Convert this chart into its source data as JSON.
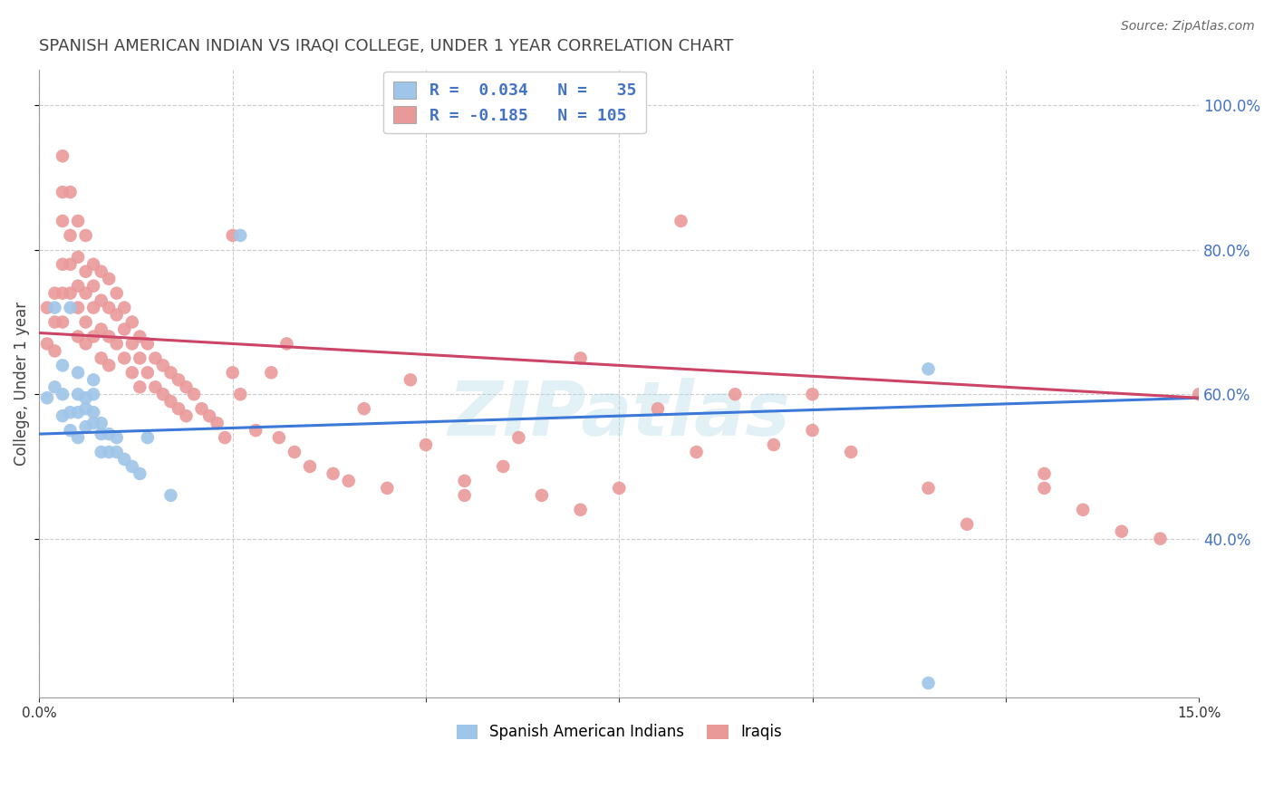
{
  "title": "SPANISH AMERICAN INDIAN VS IRAQI COLLEGE, UNDER 1 YEAR CORRELATION CHART",
  "source": "Source: ZipAtlas.com",
  "ylabel": "College, Under 1 year",
  "xlim": [
    0.0,
    0.15
  ],
  "ylim": [
    0.18,
    1.05
  ],
  "ytick_vals": [
    0.4,
    0.6,
    0.8,
    1.0
  ],
  "xtick_vals": [
    0.0,
    0.025,
    0.05,
    0.075,
    0.1,
    0.125,
    0.15
  ],
  "xtick_show": [
    0.0,
    0.15
  ],
  "legend_bottom_labels": [
    "Spanish American Indians",
    "Iraqis"
  ],
  "blue_color": "#9fc5e8",
  "pink_color": "#ea9999",
  "blue_line_color": "#3c78d8",
  "pink_line_color": "#cc4466",
  "background_color": "#ffffff",
  "grid_color": "#cccccc",
  "title_color": "#444444",
  "right_axis_color": "#4472c4",
  "watermark": "ZIPatlas",
  "blue_trend_x0": 0.0,
  "blue_trend_y0": 0.545,
  "blue_trend_x1": 0.15,
  "blue_trend_y1": 0.595,
  "pink_trend_x0": 0.0,
  "pink_trend_y0": 0.685,
  "pink_trend_x1": 0.15,
  "pink_trend_y1": 0.595,
  "blue_x": [
    0.001,
    0.002,
    0.002,
    0.003,
    0.003,
    0.003,
    0.004,
    0.004,
    0.004,
    0.005,
    0.005,
    0.005,
    0.005,
    0.006,
    0.006,
    0.006,
    0.007,
    0.007,
    0.007,
    0.007,
    0.008,
    0.008,
    0.008,
    0.009,
    0.009,
    0.01,
    0.01,
    0.011,
    0.012,
    0.013,
    0.014,
    0.017,
    0.026,
    0.115,
    0.115
  ],
  "blue_y": [
    0.595,
    0.61,
    0.72,
    0.64,
    0.6,
    0.57,
    0.72,
    0.575,
    0.55,
    0.63,
    0.6,
    0.575,
    0.54,
    0.595,
    0.58,
    0.555,
    0.62,
    0.6,
    0.575,
    0.56,
    0.56,
    0.545,
    0.52,
    0.545,
    0.52,
    0.54,
    0.52,
    0.51,
    0.5,
    0.49,
    0.54,
    0.46,
    0.82,
    0.635,
    0.2
  ],
  "pink_x": [
    0.001,
    0.001,
    0.002,
    0.002,
    0.002,
    0.003,
    0.003,
    0.003,
    0.003,
    0.003,
    0.003,
    0.004,
    0.004,
    0.004,
    0.004,
    0.005,
    0.005,
    0.005,
    0.005,
    0.005,
    0.006,
    0.006,
    0.006,
    0.006,
    0.006,
    0.007,
    0.007,
    0.007,
    0.007,
    0.008,
    0.008,
    0.008,
    0.008,
    0.009,
    0.009,
    0.009,
    0.009,
    0.01,
    0.01,
    0.01,
    0.011,
    0.011,
    0.011,
    0.012,
    0.012,
    0.012,
    0.013,
    0.013,
    0.013,
    0.014,
    0.014,
    0.015,
    0.015,
    0.016,
    0.016,
    0.017,
    0.017,
    0.018,
    0.018,
    0.019,
    0.019,
    0.02,
    0.021,
    0.022,
    0.023,
    0.024,
    0.025,
    0.026,
    0.028,
    0.03,
    0.031,
    0.033,
    0.035,
    0.038,
    0.04,
    0.042,
    0.045,
    0.05,
    0.055,
    0.06,
    0.065,
    0.07,
    0.075,
    0.083,
    0.09,
    0.095,
    0.1,
    0.105,
    0.115,
    0.12,
    0.13,
    0.135,
    0.14,
    0.145,
    0.15,
    0.025,
    0.032,
    0.048,
    0.055,
    0.062,
    0.07,
    0.08,
    0.085,
    0.1,
    0.13
  ],
  "pink_y": [
    0.72,
    0.67,
    0.74,
    0.7,
    0.66,
    0.88,
    0.93,
    0.84,
    0.78,
    0.74,
    0.7,
    0.88,
    0.82,
    0.78,
    0.74,
    0.84,
    0.79,
    0.75,
    0.72,
    0.68,
    0.82,
    0.77,
    0.74,
    0.7,
    0.67,
    0.78,
    0.75,
    0.72,
    0.68,
    0.77,
    0.73,
    0.69,
    0.65,
    0.76,
    0.72,
    0.68,
    0.64,
    0.74,
    0.71,
    0.67,
    0.72,
    0.69,
    0.65,
    0.7,
    0.67,
    0.63,
    0.68,
    0.65,
    0.61,
    0.67,
    0.63,
    0.65,
    0.61,
    0.64,
    0.6,
    0.63,
    0.59,
    0.62,
    0.58,
    0.61,
    0.57,
    0.6,
    0.58,
    0.57,
    0.56,
    0.54,
    0.63,
    0.6,
    0.55,
    0.63,
    0.54,
    0.52,
    0.5,
    0.49,
    0.48,
    0.58,
    0.47,
    0.53,
    0.48,
    0.5,
    0.46,
    0.44,
    0.47,
    0.84,
    0.6,
    0.53,
    0.6,
    0.52,
    0.47,
    0.42,
    0.49,
    0.44,
    0.41,
    0.4,
    0.6,
    0.82,
    0.67,
    0.62,
    0.46,
    0.54,
    0.65,
    0.58,
    0.52,
    0.55,
    0.47
  ]
}
